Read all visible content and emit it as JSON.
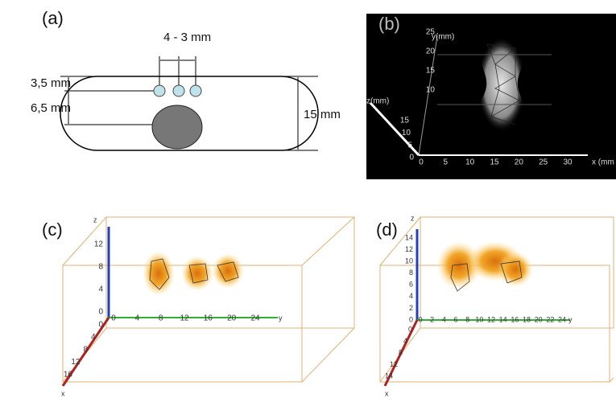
{
  "panels": [
    {
      "label": "(a)",
      "dimensions": [
        "4 - 3 mm",
        "3,5 mm",
        "6,5 mm",
        "15 mm"
      ]
    },
    {
      "label": "(b)",
      "axes": {
        "y": "y(mm)",
        "z": "z(mm)",
        "x": "x (mm"
      },
      "y_ticks": [
        25,
        20,
        15,
        10
      ],
      "z_ticks": [
        15,
        10,
        5,
        0
      ],
      "x_ticks": [
        0,
        5,
        10,
        15,
        20,
        25,
        30
      ]
    },
    {
      "label": "(c)",
      "axes": {
        "z": "z",
        "y": "y",
        "x": "x"
      },
      "z_ticks": [
        12,
        8,
        4,
        0
      ],
      "y_ticks": [
        0,
        4,
        8,
        12,
        16,
        20,
        24
      ],
      "x_ticks": [
        0,
        4,
        8,
        12,
        16
      ]
    },
    {
      "label": "(d)",
      "axes": {
        "z": "z",
        "y": "y",
        "x": "x"
      },
      "z_ticks": [
        14,
        12,
        10,
        8,
        6,
        4,
        2,
        0
      ],
      "y_ticks": [
        0,
        2,
        4,
        6,
        8,
        10,
        12,
        14,
        16,
        18,
        20,
        22,
        24
      ],
      "x_ticks": [
        0,
        4,
        8,
        12,
        14
      ]
    }
  ]
}
